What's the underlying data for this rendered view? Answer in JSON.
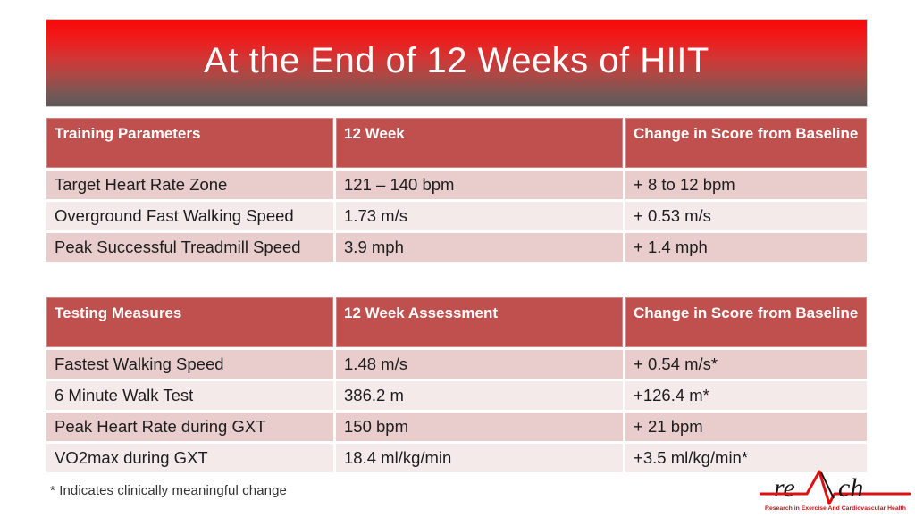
{
  "slide": {
    "title": "At the End of 12 Weeks of HIIT",
    "footnote": "* Indicates clinically meaningful change"
  },
  "tables": [
    {
      "name": "training-parameters",
      "headers": [
        "Training Parameters",
        "12 Week",
        "Change in Score from Baseline"
      ],
      "rows": [
        [
          "Target Heart Rate Zone",
          "121 – 140 bpm",
          "+ 8 to 12 bpm"
        ],
        [
          "Overground Fast Walking Speed",
          "1.73 m/s",
          "+ 0.53 m/s"
        ],
        [
          "Peak Successful Treadmill Speed",
          "3.9 mph",
          "+ 1.4 mph"
        ]
      ]
    },
    {
      "name": "testing-measures",
      "headers": [
        "Testing Measures",
        "12 Week Assessment",
        "Change in Score from Baseline"
      ],
      "rows": [
        [
          "Fastest Walking Speed",
          "1.48 m/s",
          "+ 0.54 m/s*"
        ],
        [
          "6 Minute Walk Test",
          "386.2 m",
          "+126.4 m*"
        ],
        [
          "Peak Heart Rate during GXT",
          "150 bpm",
          "+ 21 bpm"
        ],
        [
          "VO2max during GXT",
          "18.4 ml/kg/min",
          "+3.5 ml/kg/min*"
        ]
      ]
    }
  ],
  "logo": {
    "word_left": "re",
    "word_right": "ch",
    "tagline": "Research in Exercise And Cardiovascular Health"
  },
  "colors": {
    "header_bg": "#C0504D",
    "row_dark": "#E8CDCC",
    "row_light": "#F4EAE9",
    "banner_top_red": "#FA0707",
    "banner_bottom_gray": "#5F5958",
    "logo_red": "#DD1111",
    "title_text": "#FFFFFF"
  }
}
